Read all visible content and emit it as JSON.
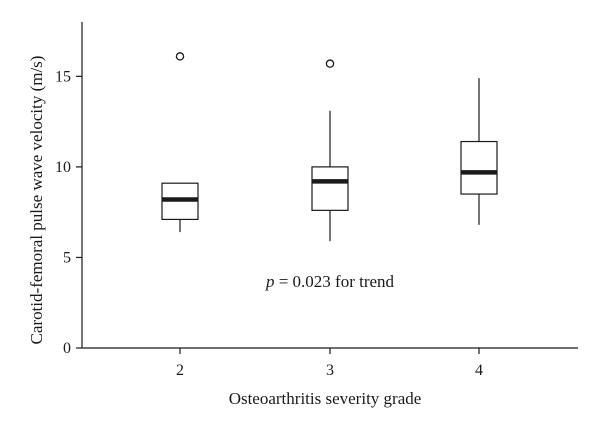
{
  "chart_data": {
    "type": "box",
    "xlabel": "Osteoarthritis severity grade",
    "ylabel": "Carotid-femoral pulse wave velocity (m/s)",
    "ylim": [
      0,
      18
    ],
    "yticks": [
      0,
      5,
      10,
      15
    ],
    "categories": [
      "2",
      "3",
      "4"
    ],
    "boxes": [
      {
        "category": "2",
        "whisker_low": 6.4,
        "q1": 7.1,
        "median": 8.2,
        "q3": 9.1,
        "whisker_high": 9.1,
        "outliers": [
          16.1
        ]
      },
      {
        "category": "3",
        "whisker_low": 5.9,
        "q1": 7.6,
        "median": 9.2,
        "q3": 10.0,
        "whisker_high": 13.1,
        "outliers": [
          15.7
        ]
      },
      {
        "category": "4",
        "whisker_low": 6.8,
        "q1": 8.5,
        "median": 9.7,
        "q3": 11.4,
        "whisker_high": 14.9,
        "outliers": []
      }
    ],
    "annotation": {
      "italic": "p",
      "text": " = 0.023 for trend"
    },
    "grid": false,
    "legend": "none"
  }
}
